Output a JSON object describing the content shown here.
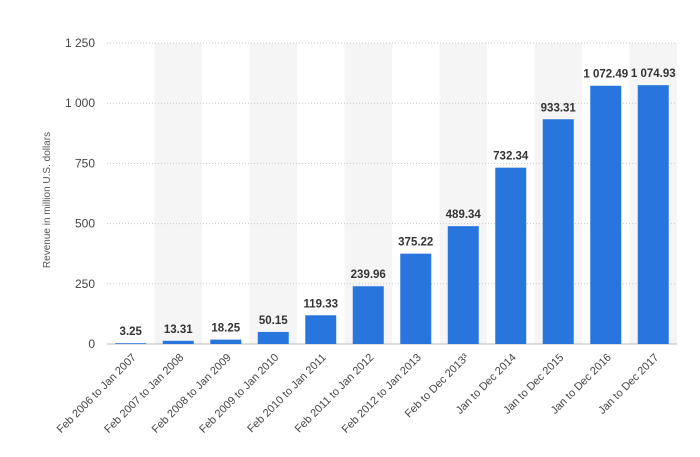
{
  "chart_data": {
    "type": "bar",
    "title": "",
    "xlabel": "",
    "ylabel": "Revenue in million U.S. dollars",
    "ylim": [
      0,
      1250
    ],
    "yticks": [
      0,
      250,
      500,
      750,
      1000,
      1250
    ],
    "ytick_labels": [
      "0",
      "250",
      "500",
      "750",
      "1 000",
      "1 250"
    ],
    "grid": "horizontal dotted",
    "bar_color": "#2876DD",
    "band_color": "#F5F5F5",
    "categories": [
      "Feb 2006 to Jan 2007",
      "Feb 2007 to Jan 2008",
      "Feb 2008 to Jan 2009",
      "Feb 2009 to Jan 2010",
      "Feb 2010 to Jan 2011",
      "Feb 2011 to Jan 2012",
      "Feb 2012 to Jan 2013",
      "Feb to Dec 2013³",
      "Jan to Dec 2014",
      "Jan to Dec 2015",
      "Jan to Dec 2016",
      "Jan to Dec 2017"
    ],
    "values": [
      3.25,
      13.31,
      18.25,
      50.15,
      119.33,
      239.96,
      375.22,
      489.34,
      732.34,
      933.31,
      1072.49,
      1074.93
    ],
    "value_labels": [
      "3.25",
      "13.31",
      "18.25",
      "50.15",
      "119.33",
      "239.96",
      "375.22",
      "489.34",
      "732.34",
      "933.31",
      "1 072.49",
      "1 074.93"
    ]
  }
}
